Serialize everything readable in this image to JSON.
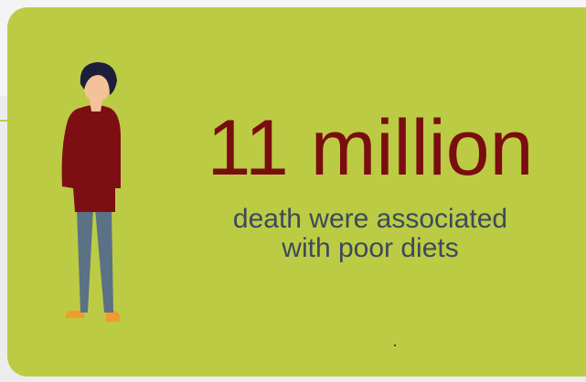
{
  "headline": "11 million",
  "caption": {
    "lines": [
      "death were associated",
      "with poor diets"
    ]
  }
}
